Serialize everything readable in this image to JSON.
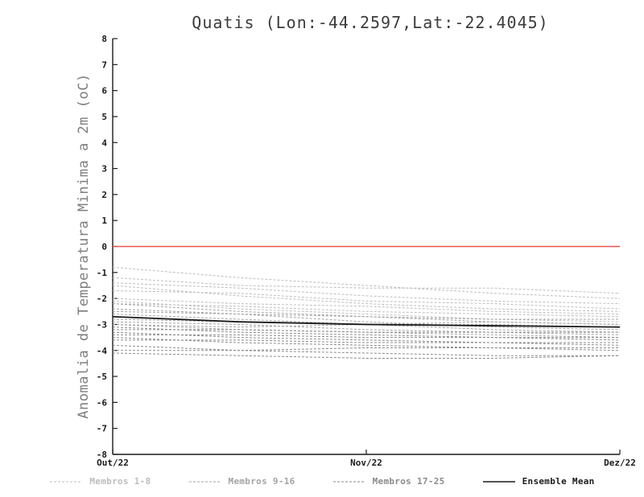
{
  "title": "Quatis (Lon:-44.2597,Lat:-22.4045)",
  "chart_data": {
    "type": "line",
    "title": "Quatis (Lon:-44.2597,Lat:-22.4045)",
    "xlabel": "",
    "ylabel": "Anomalia de Temperatura Minima a 2m (oC)",
    "ylim": [
      -8,
      8
    ],
    "yticks": [
      -8,
      -7,
      -6,
      -5,
      -4,
      -3,
      -2,
      -1,
      0,
      1,
      2,
      3,
      4,
      5,
      6,
      7,
      8
    ],
    "xlim": [
      0,
      2
    ],
    "x_months": [
      0,
      0.5,
      1,
      1.5,
      2
    ],
    "xticks": [
      {
        "label": "Out/22",
        "x": 0
      },
      {
        "label": "Nov/22",
        "x": 1
      },
      {
        "label": "Dez/22",
        "x": 2
      }
    ],
    "grid": false,
    "legend_position": "bottom",
    "zero_line": {
      "y": 0,
      "color": "#e8534b"
    },
    "axis_color": "#1a1a1a",
    "groups": [
      {
        "name": "Membros 1-8",
        "color": "#bdbdbd",
        "dash": "3,2",
        "series": [
          [
            -0.8,
            -1.2,
            -1.5,
            -1.8,
            -2.0
          ],
          [
            -1.2,
            -1.5,
            -1.6,
            -1.6,
            -1.8
          ],
          [
            -1.4,
            -1.6,
            -1.9,
            -2.1,
            -2.2
          ],
          [
            -1.5,
            -1.9,
            -2.2,
            -2.4,
            -2.5
          ],
          [
            -1.7,
            -1.8,
            -2.1,
            -2.2,
            -2.4
          ],
          [
            -2.0,
            -2.2,
            -2.3,
            -2.5,
            -2.6
          ],
          [
            -2.1,
            -2.4,
            -2.6,
            -2.8,
            -2.9
          ],
          [
            -2.2,
            -2.3,
            -2.5,
            -2.6,
            -2.7
          ]
        ]
      },
      {
        "name": "Membros 9-16",
        "color": "#a3a3a3",
        "dash": "3,2",
        "series": [
          [
            -2.2,
            -2.5,
            -2.7,
            -2.9,
            -3.0
          ],
          [
            -2.4,
            -2.6,
            -2.9,
            -3.1,
            -3.2
          ],
          [
            -2.5,
            -2.6,
            -2.7,
            -2.8,
            -2.8
          ],
          [
            -2.6,
            -2.8,
            -3.0,
            -3.2,
            -3.3
          ],
          [
            -2.8,
            -2.9,
            -3.0,
            -3.0,
            -3.1
          ],
          [
            -2.9,
            -3.0,
            -3.2,
            -3.3,
            -3.4
          ],
          [
            -3.0,
            -3.1,
            -3.0,
            -2.9,
            -3.0
          ],
          [
            -3.0,
            -3.2,
            -3.3,
            -3.4,
            -3.5
          ]
        ]
      },
      {
        "name": "Membros 17-25",
        "color": "#8a8a8a",
        "dash": "3,2",
        "series": [
          [
            -3.1,
            -3.3,
            -3.4,
            -3.5,
            -3.6
          ],
          [
            -3.2,
            -3.2,
            -3.3,
            -3.3,
            -3.3
          ],
          [
            -3.3,
            -3.5,
            -3.6,
            -3.7,
            -3.8
          ],
          [
            -3.4,
            -3.4,
            -3.5,
            -3.5,
            -3.5
          ],
          [
            -3.5,
            -3.7,
            -3.8,
            -3.9,
            -4.0
          ],
          [
            -3.6,
            -3.6,
            -3.7,
            -3.7,
            -3.7
          ],
          [
            -3.8,
            -4.0,
            -4.1,
            -4.2,
            -4.2
          ],
          [
            -4.0,
            -4.0,
            -3.9,
            -3.9,
            -3.9
          ],
          [
            -4.1,
            -4.2,
            -4.3,
            -4.3,
            -4.2
          ]
        ]
      }
    ],
    "mean": {
      "name": "Ensemble Mean",
      "color": "#1a1a1a",
      "values": [
        -2.7,
        -2.9,
        -3.0,
        -3.05,
        -3.1
      ]
    }
  },
  "legend": [
    {
      "label": "Membros 1-8",
      "color": "#bdbdbd",
      "dashed": true
    },
    {
      "label": "Membros 9-16",
      "color": "#a3a3a3",
      "dashed": true
    },
    {
      "label": "Membros 17-25",
      "color": "#8a8a8a",
      "dashed": true
    },
    {
      "label": "Ensemble Mean",
      "color": "#1a1a1a",
      "dashed": false
    }
  ]
}
